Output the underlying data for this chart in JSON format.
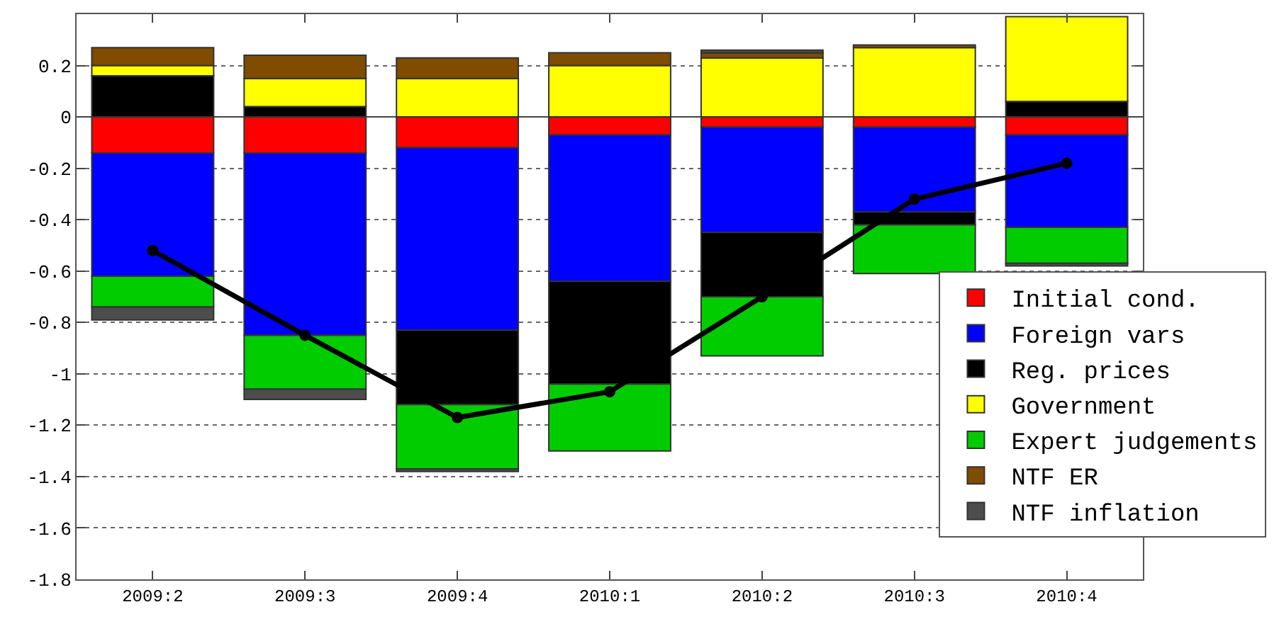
{
  "chart_data": {
    "type": "bar",
    "stacked": true,
    "categories": [
      "2009:2",
      "2009:3",
      "2009:4",
      "2010:1",
      "2010:2",
      "2010:3",
      "2010:4"
    ],
    "series": [
      {
        "name": "Initial cond.",
        "color": "#ff0000",
        "values": [
          -0.14,
          -0.14,
          -0.12,
          -0.07,
          -0.04,
          -0.04,
          -0.07
        ]
      },
      {
        "name": "Foreign vars",
        "color": "#0000ff",
        "values": [
          -0.48,
          -0.71,
          -0.71,
          -0.57,
          -0.41,
          -0.33,
          -0.36
        ]
      },
      {
        "name": "Reg. prices",
        "color": "#000000",
        "values": [
          0.16,
          0.04,
          -0.29,
          -0.4,
          -0.25,
          -0.05,
          0.06
        ]
      },
      {
        "name": "Government",
        "color": "#ffff00",
        "values": [
          0.04,
          0.11,
          0.15,
          0.2,
          0.23,
          0.27,
          0.33
        ]
      },
      {
        "name": "Expert judgements",
        "color": "#00cc00",
        "values": [
          -0.12,
          -0.21,
          -0.25,
          -0.26,
          -0.23,
          -0.19,
          -0.14
        ]
      },
      {
        "name": "NTF ER",
        "color": "#7f4c00",
        "values": [
          0.07,
          0.09,
          0.08,
          0.05,
          0.02,
          0.01,
          null
        ]
      },
      {
        "name": "NTF inflation",
        "color": "#4d4d4d",
        "values": [
          -0.05,
          -0.04,
          -0.01,
          null,
          0.01,
          null,
          -0.01
        ]
      },
      {
        "type": "line",
        "color": "#000000",
        "marker": "circle",
        "values": [
          -0.52,
          -0.85,
          -1.17,
          -1.07,
          -0.7,
          -0.32,
          -0.18
        ]
      }
    ],
    "ylim": [
      -1.8,
      0.4
    ],
    "yticks": [
      -1.8,
      -1.6,
      -1.4,
      -1.2,
      -1,
      -0.8,
      -0.6,
      -0.4,
      -0.2,
      0,
      0.2
    ],
    "grid": "y",
    "legend": "bottom right"
  }
}
